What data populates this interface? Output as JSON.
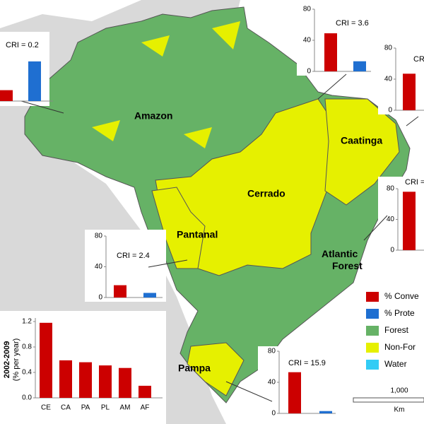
{
  "map": {
    "regions": [
      "Amazon",
      "Cerrado",
      "Caatinga",
      "Pantanal",
      "Atlantic Forest",
      "Pampa"
    ],
    "legend": [
      {
        "label": "% Conve",
        "color": "#cc0000"
      },
      {
        "label": "% Prote",
        "color": "#1f6fd1"
      },
      {
        "label": "Forest",
        "color": "#66b266"
      },
      {
        "label": "Non-For",
        "color": "#e6f000"
      },
      {
        "label": "Water",
        "color": "#33ccf5"
      }
    ],
    "scale": {
      "value": "1,000",
      "unit": "Km"
    },
    "insets": [
      {
        "type": "bar",
        "label": "CRI = 0.2",
        "values": [
          14,
          51
        ],
        "colors": [
          "#cc0000",
          "#1f6fd1"
        ],
        "ylim": [
          0,
          80
        ]
      },
      {
        "type": "bar",
        "label": "CRI = 3.6",
        "values": [
          49,
          13
        ],
        "colors": [
          "#cc0000",
          "#1f6fd1"
        ],
        "ylim": [
          0,
          80
        ],
        "yticks": [
          0,
          40,
          80
        ]
      },
      {
        "type": "bar",
        "label": "CRI",
        "values": [
          47
        ],
        "colors": [
          "#cc0000"
        ],
        "ylim": [
          0,
          80
        ],
        "yticks": [
          0,
          40,
          80
        ]
      },
      {
        "type": "bar",
        "label": "CRI =",
        "values": [
          76
        ],
        "colors": [
          "#cc0000"
        ],
        "ylim": [
          0,
          80
        ],
        "yticks": [
          0,
          40,
          80
        ]
      },
      {
        "type": "bar",
        "label": "CRI = 2.4",
        "values": [
          16,
          6
        ],
        "colors": [
          "#cc0000",
          "#1f6fd1"
        ],
        "ylim": [
          0,
          80
        ],
        "yticks": [
          0,
          40,
          80
        ]
      },
      {
        "type": "bar",
        "label": "CRI = 15.9",
        "values": [
          53,
          3
        ],
        "colors": [
          "#cc0000",
          "#1f6fd1"
        ],
        "ylim": [
          0,
          80
        ],
        "yticks": [
          0,
          40,
          80
        ]
      }
    ]
  },
  "chart_data": {
    "type": "bar",
    "y_label": [
      "2002-2009",
      "(% per year)"
    ],
    "categories": [
      "CE",
      "CA",
      "PA",
      "PL",
      "AM",
      "AF"
    ],
    "values": [
      1.18,
      0.59,
      0.56,
      0.51,
      0.47,
      0.19
    ],
    "color": "#cc0000",
    "ylim": [
      0,
      1.2
    ],
    "yticks": [
      {
        "value": 0,
        "label": "0.0"
      },
      {
        "value": 0.4,
        "label": "0.4"
      },
      {
        "value": 0.8,
        "label": "0.8"
      },
      {
        "value": 1.2,
        "label": "1.2"
      }
    ]
  }
}
